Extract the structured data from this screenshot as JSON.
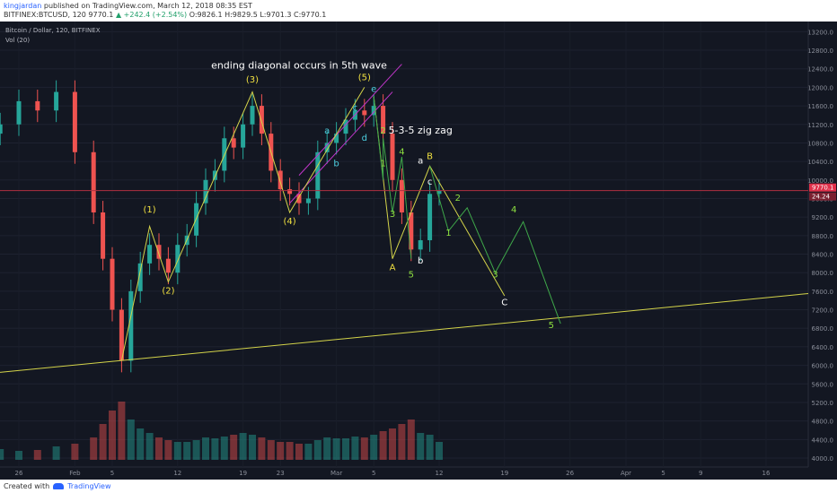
{
  "header": {
    "author": "kingjardan",
    "published_line": "published on TradingView.com, March 12, 2018 08:35 EST",
    "symbol": "BITFINEX:BTCUSD, 120",
    "last": "9770.1",
    "change": "▲ +242.4 (+2.54%)",
    "ohlc": "O:9826.1 H:9829.5 L:9701.3 C:9770.1"
  },
  "chart_title": "Bitcoin / Dollar, 120, BITFINEX",
  "volume_label": "Vol (20)",
  "footer": {
    "created_with": "Created with",
    "brand": "TradingView"
  },
  "colors": {
    "background": "#131722",
    "bull": "#26a69a",
    "bear": "#ef5350",
    "trend_line": "#d4d44a",
    "projection_line": "#3fa84a",
    "diagonal_line": "#c036c9",
    "price_line": "#b03040",
    "wave_yellow": "#f0e040",
    "wave_green": "#8ee040",
    "wave_cyan": "#4dd0e1",
    "label_white": "#ffffff"
  },
  "chart_data": {
    "type": "line",
    "title": "Bitcoin / Dollar, 120, BITFINEX",
    "price_axis": {
      "ticks": [
        4000,
        4400,
        4800,
        5200,
        5600,
        6000,
        6400,
        6800,
        7200,
        7600,
        8000,
        8400,
        8800,
        9200,
        9600,
        10000,
        10400,
        10800,
        11200,
        11600,
        12000,
        12400,
        12800,
        13200
      ],
      "ylim": [
        3900,
        13300
      ]
    },
    "time_axis": {
      "labels": [
        "26",
        "Feb",
        "5",
        "12",
        "19",
        "23",
        "Mar",
        "5",
        "12",
        "19",
        "26",
        "Apr",
        "5",
        "9",
        "16"
      ]
    },
    "current_price": {
      "value": 9770.1,
      "label": "9770.1",
      "change_label": "24.24"
    },
    "price_path": {
      "x": [
        "Jan 24",
        "Jan 26",
        "Jan 28",
        "Jan 30",
        "Feb 1",
        "Feb 3",
        "Feb 4",
        "Feb 5",
        "Feb 6",
        "Feb 7",
        "Feb 8",
        "Feb 9",
        "Feb 10",
        "Feb 11",
        "Feb 12",
        "Feb 13",
        "Feb 14",
        "Feb 15",
        "Feb 16",
        "Feb 17",
        "Feb 18",
        "Feb 19",
        "Feb 20",
        "Feb 21",
        "Feb 22",
        "Feb 23",
        "Feb 24",
        "Feb 25",
        "Feb 26",
        "Feb 27",
        "Feb 28",
        "Mar 1",
        "Mar 2",
        "Mar 3",
        "Mar 4",
        "Mar 5",
        "Mar 6",
        "Mar 7",
        "Mar 8",
        "Mar 9",
        "Mar 10",
        "Mar 11",
        "Mar 12"
      ],
      "y": [
        11200,
        11700,
        11500,
        11900,
        10600,
        9300,
        8300,
        7200,
        6100,
        7600,
        8200,
        8600,
        8300,
        8000,
        8600,
        8800,
        9500,
        10000,
        10200,
        10900,
        10700,
        11200,
        11600,
        11000,
        10200,
        9800,
        9700,
        9500,
        9600,
        10600,
        10800,
        11000,
        11300,
        11500,
        11400,
        11600,
        11000,
        10000,
        9300,
        8500,
        8700,
        9700,
        9770
      ]
    },
    "volume": [
      12,
      10,
      11,
      15,
      18,
      25,
      40,
      55,
      65,
      45,
      35,
      30,
      25,
      22,
      20,
      20,
      22,
      25,
      24,
      26,
      28,
      30,
      28,
      25,
      22,
      20,
      20,
      18,
      18,
      22,
      25,
      24,
      24,
      26,
      25,
      28,
      32,
      35,
      40,
      45,
      30,
      28,
      20
    ],
    "annotations": [
      {
        "text": "ending diagonal occurs in 5th wave",
        "color": "label_white",
        "x": "Feb 25",
        "y": 12400
      },
      {
        "text": "5-3-5 zig zag",
        "color": "label_white",
        "x": "Mar 10",
        "y": 11000
      },
      {
        "text": "(1)",
        "color": "wave_yellow",
        "x": "Feb 9",
        "y": 9300
      },
      {
        "text": "(2)",
        "color": "wave_yellow",
        "x": "Feb 11",
        "y": 7550
      },
      {
        "text": "(3)",
        "color": "wave_yellow",
        "x": "Feb 20",
        "y": 12100
      },
      {
        "text": "(4)",
        "color": "wave_yellow",
        "x": "Feb 24",
        "y": 9050
      },
      {
        "text": "(5)",
        "color": "wave_yellow",
        "x": "Mar 4",
        "y": 12150
      },
      {
        "text": "a",
        "color": "wave_cyan",
        "x": "Feb 28",
        "y": 11000
      },
      {
        "text": "b",
        "color": "wave_cyan",
        "x": "Mar 1",
        "y": 10300
      },
      {
        "text": "c",
        "color": "wave_cyan",
        "x": "Mar 3",
        "y": 11500
      },
      {
        "text": "d",
        "color": "wave_cyan",
        "x": "Mar 4",
        "y": 10850
      },
      {
        "text": "e",
        "color": "wave_cyan",
        "x": "Mar 5",
        "y": 11900
      },
      {
        "text": "1",
        "color": "wave_green",
        "x": "Mar 6",
        "y": 10300
      },
      {
        "text": "2",
        "color": "wave_green",
        "x": "Mar 6",
        "y": 11000
      },
      {
        "text": "3",
        "color": "wave_green",
        "x": "Mar 7",
        "y": 9200
      },
      {
        "text": "4",
        "color": "wave_green",
        "x": "Mar 8",
        "y": 10550
      },
      {
        "text": "5",
        "color": "wave_green",
        "x": "Mar 9",
        "y": 7900
      },
      {
        "text": "A",
        "color": "wave_yellow",
        "x": "Mar 7",
        "y": 8050
      },
      {
        "text": "a",
        "color": "label_white",
        "x": "Mar 10",
        "y": 10350
      },
      {
        "text": "b",
        "color": "label_white",
        "x": "Mar 10",
        "y": 8200
      },
      {
        "text": "c",
        "color": "label_white",
        "x": "Mar 11",
        "y": 9900
      },
      {
        "text": "B",
        "color": "wave_yellow",
        "x": "Mar 11",
        "y": 10450
      },
      {
        "text": "1",
        "color": "wave_green",
        "x": "Mar 13",
        "y": 8800
      },
      {
        "text": "2",
        "color": "wave_green",
        "x": "Mar 14",
        "y": 9550
      },
      {
        "text": "3",
        "color": "wave_green",
        "x": "Mar 18",
        "y": 7900
      },
      {
        "text": "4",
        "color": "wave_green",
        "x": "Mar 20",
        "y": 9300
      },
      {
        "text": "C",
        "color": "label_white",
        "x": "Mar 19",
        "y": 7300
      },
      {
        "text": "5",
        "color": "wave_green",
        "x": "Mar 24",
        "y": 6800
      }
    ]
  }
}
